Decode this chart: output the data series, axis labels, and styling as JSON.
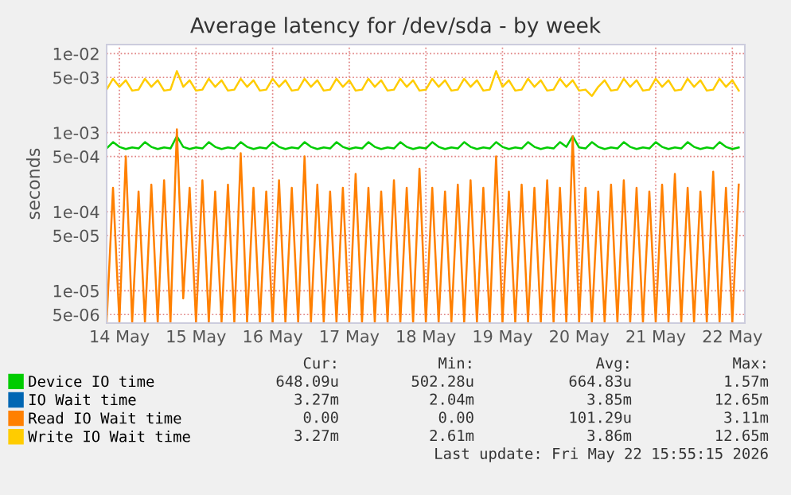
{
  "chart_data": {
    "type": "line",
    "title": "Average latency for /dev/sda - by week",
    "ylabel": "seconds",
    "log": "y",
    "grid": true,
    "legend": "bottom",
    "marker": "none",
    "line_style": "solid",
    "xlim": [
      "2026-05-14T08:00",
      "2026-05-22T15:55"
    ],
    "xticks": [
      {
        "value": "2026-05-14T12:00",
        "label": "14 May"
      },
      {
        "value": "2026-05-15T12:00",
        "label": "15 May"
      },
      {
        "value": "2026-05-16T12:00",
        "label": "16 May"
      },
      {
        "value": "2026-05-17T12:00",
        "label": "17 May"
      },
      {
        "value": "2026-05-18T12:00",
        "label": "18 May"
      },
      {
        "value": "2026-05-19T12:00",
        "label": "19 May"
      },
      {
        "value": "2026-05-20T12:00",
        "label": "20 May"
      },
      {
        "value": "2026-05-21T12:00",
        "label": "21 May"
      },
      {
        "value": "2026-05-22T12:00",
        "label": "22 May"
      }
    ],
    "ylim": [
      3.9e-06,
      0.013
    ],
    "yticks": [
      {
        "value": 0.01,
        "label": "1e-02"
      },
      {
        "value": 0.005,
        "label": "5e-03"
      },
      {
        "value": 0.001,
        "label": "1e-03"
      },
      {
        "value": 0.0005,
        "label": "5e-04"
      },
      {
        "value": 0.0001,
        "label": "1e-04"
      },
      {
        "value": 5e-05,
        "label": "5e-05"
      },
      {
        "value": 1e-05,
        "label": "1e-05"
      },
      {
        "value": 5e-06,
        "label": "5e-06"
      }
    ],
    "x": [
      "2026-05-14T08:00",
      "2026-05-14T10:00",
      "2026-05-14T12:00",
      "2026-05-14T14:00",
      "2026-05-14T16:00",
      "2026-05-14T18:00",
      "2026-05-14T20:00",
      "2026-05-14T22:00",
      "2026-05-15T00:00",
      "2026-05-15T02:00",
      "2026-05-15T04:00",
      "2026-05-15T06:00",
      "2026-05-15T08:00",
      "2026-05-15T10:00",
      "2026-05-15T12:00",
      "2026-05-15T14:00",
      "2026-05-15T16:00",
      "2026-05-15T18:00",
      "2026-05-15T20:00",
      "2026-05-15T22:00",
      "2026-05-16T00:00",
      "2026-05-16T02:00",
      "2026-05-16T04:00",
      "2026-05-16T06:00",
      "2026-05-16T08:00",
      "2026-05-16T10:00",
      "2026-05-16T12:00",
      "2026-05-16T14:00",
      "2026-05-16T16:00",
      "2026-05-16T18:00",
      "2026-05-16T20:00",
      "2026-05-16T22:00",
      "2026-05-17T00:00",
      "2026-05-17T02:00",
      "2026-05-17T04:00",
      "2026-05-17T06:00",
      "2026-05-17T08:00",
      "2026-05-17T10:00",
      "2026-05-17T12:00",
      "2026-05-17T14:00",
      "2026-05-17T16:00",
      "2026-05-17T18:00",
      "2026-05-17T20:00",
      "2026-05-17T22:00",
      "2026-05-18T00:00",
      "2026-05-18T02:00",
      "2026-05-18T04:00",
      "2026-05-18T06:00",
      "2026-05-18T08:00",
      "2026-05-18T10:00",
      "2026-05-18T12:00",
      "2026-05-18T14:00",
      "2026-05-18T16:00",
      "2026-05-18T18:00",
      "2026-05-18T20:00",
      "2026-05-18T22:00",
      "2026-05-19T00:00",
      "2026-05-19T02:00",
      "2026-05-19T04:00",
      "2026-05-19T06:00",
      "2026-05-19T08:00",
      "2026-05-19T10:00",
      "2026-05-19T12:00",
      "2026-05-19T14:00",
      "2026-05-19T16:00",
      "2026-05-19T18:00",
      "2026-05-19T20:00",
      "2026-05-19T22:00",
      "2026-05-20T00:00",
      "2026-05-20T02:00",
      "2026-05-20T04:00",
      "2026-05-20T06:00",
      "2026-05-20T08:00",
      "2026-05-20T10:00",
      "2026-05-20T12:00",
      "2026-05-20T14:00",
      "2026-05-20T16:00",
      "2026-05-20T18:00",
      "2026-05-20T20:00",
      "2026-05-20T22:00",
      "2026-05-21T00:00",
      "2026-05-21T02:00",
      "2026-05-21T04:00",
      "2026-05-21T06:00",
      "2026-05-21T08:00",
      "2026-05-21T10:00",
      "2026-05-21T12:00",
      "2026-05-21T14:00",
      "2026-05-21T16:00",
      "2026-05-21T18:00",
      "2026-05-21T20:00",
      "2026-05-21T22:00",
      "2026-05-22T00:00",
      "2026-05-22T02:00",
      "2026-05-22T04:00",
      "2026-05-22T06:00",
      "2026-05-22T08:00",
      "2026-05-22T10:00",
      "2026-05-22T12:00",
      "2026-05-22T14:00"
    ],
    "series": [
      {
        "name": "Device IO time",
        "color": "#00cc00",
        "values": [
          0.00063,
          0.00076,
          0.00066,
          0.00062,
          0.00065,
          0.00063,
          0.00076,
          0.00066,
          0.00062,
          0.00065,
          0.00063,
          0.0009,
          0.00066,
          0.00062,
          0.00065,
          0.00063,
          0.00076,
          0.00066,
          0.00062,
          0.00065,
          0.00063,
          0.00076,
          0.00066,
          0.00062,
          0.00065,
          0.00063,
          0.00076,
          0.00066,
          0.00062,
          0.00065,
          0.00063,
          0.00076,
          0.00066,
          0.00062,
          0.00065,
          0.00063,
          0.00076,
          0.00066,
          0.00062,
          0.00065,
          0.00063,
          0.00076,
          0.00066,
          0.00062,
          0.00065,
          0.00063,
          0.00076,
          0.00066,
          0.00062,
          0.00065,
          0.00063,
          0.00076,
          0.00066,
          0.00062,
          0.00065,
          0.00063,
          0.00076,
          0.00066,
          0.00062,
          0.00065,
          0.00063,
          0.00076,
          0.00066,
          0.00062,
          0.00065,
          0.00063,
          0.00076,
          0.00066,
          0.00062,
          0.00065,
          0.00063,
          0.00076,
          0.00066,
          0.0009,
          0.00065,
          0.00063,
          0.00076,
          0.00066,
          0.00062,
          0.00065,
          0.00063,
          0.00076,
          0.00066,
          0.00062,
          0.00065,
          0.00063,
          0.00076,
          0.00066,
          0.00062,
          0.00065,
          0.00063,
          0.00076,
          0.00066,
          0.00062,
          0.00065,
          0.00063,
          0.00076,
          0.00066,
          0.00062,
          0.00065
        ]
      },
      {
        "name": "IO Wait time",
        "color": "#0066b3",
        "values": [
          null,
          null,
          null,
          null,
          null,
          null,
          null,
          null,
          null,
          null,
          null,
          null,
          null,
          null,
          null,
          null,
          null,
          null,
          null,
          null,
          null,
          null,
          null,
          null,
          null,
          null,
          null,
          null,
          null,
          null,
          null,
          null,
          null,
          null,
          null,
          null,
          null,
          null,
          null,
          null,
          null,
          null,
          null,
          null,
          null,
          null,
          null,
          null,
          null,
          null,
          null,
          null,
          null,
          null,
          null,
          null,
          null,
          null,
          null,
          null,
          null,
          null,
          null,
          null,
          null,
          null,
          null,
          null,
          null,
          null,
          null,
          null,
          null,
          null,
          null,
          null,
          null,
          null,
          null,
          null,
          null,
          null,
          null,
          null,
          null,
          null,
          null,
          null,
          null,
          null,
          null,
          null,
          null,
          null,
          null,
          null,
          null,
          null,
          null,
          null
        ]
      },
      {
        "name": "Read IO Wait time",
        "color": "#ff8000",
        "values": [
          4e-06,
          0.0002,
          4e-06,
          0.0005,
          4e-06,
          0.00018,
          4e-06,
          0.00022,
          4e-06,
          0.00025,
          4e-06,
          0.0011,
          8e-06,
          0.0002,
          4e-06,
          0.00025,
          4e-06,
          0.00018,
          4e-06,
          0.00022,
          4e-06,
          0.00055,
          4e-06,
          0.0002,
          4e-06,
          0.00018,
          4e-06,
          0.00025,
          4e-06,
          0.0002,
          4e-06,
          0.0005,
          4e-06,
          0.00022,
          4e-06,
          0.00018,
          4e-06,
          0.0002,
          4e-06,
          0.0003,
          4e-06,
          0.0002,
          4e-06,
          0.00018,
          4e-06,
          0.00025,
          4e-06,
          0.0002,
          4e-06,
          0.00035,
          4e-06,
          0.0002,
          4e-06,
          0.00018,
          4e-06,
          0.00022,
          4e-06,
          0.00025,
          4e-06,
          0.0002,
          4e-06,
          0.0005,
          4e-06,
          0.00018,
          4e-06,
          0.00022,
          4e-06,
          0.0002,
          4e-06,
          0.00025,
          4e-06,
          0.0002,
          4e-06,
          0.0009,
          4e-06,
          0.0002,
          4e-06,
          0.00018,
          4e-06,
          0.00022,
          4e-06,
          0.00025,
          4e-06,
          0.0002,
          4e-06,
          0.00018,
          4e-06,
          0.00022,
          4e-06,
          0.0003,
          4e-06,
          0.0002,
          4e-06,
          0.00018,
          4e-06,
          0.00032,
          4e-06,
          0.0002,
          4e-06,
          0.00022
        ]
      },
      {
        "name": "Write IO Wait time",
        "color": "#ffcc00",
        "values": [
          0.0035,
          0.0048,
          0.0038,
          0.0046,
          0.0034,
          0.0035,
          0.0048,
          0.0038,
          0.0046,
          0.0034,
          0.0035,
          0.006,
          0.0038,
          0.0046,
          0.0034,
          0.0035,
          0.0048,
          0.0038,
          0.0046,
          0.0034,
          0.0035,
          0.0048,
          0.0038,
          0.0046,
          0.0034,
          0.0035,
          0.0048,
          0.0038,
          0.0046,
          0.0034,
          0.0035,
          0.0048,
          0.0038,
          0.0046,
          0.0034,
          0.0035,
          0.0048,
          0.0038,
          0.0046,
          0.0034,
          0.0035,
          0.0048,
          0.0038,
          0.0046,
          0.0034,
          0.0035,
          0.0048,
          0.0038,
          0.0046,
          0.0034,
          0.0035,
          0.0048,
          0.0038,
          0.0046,
          0.0034,
          0.0035,
          0.0048,
          0.0038,
          0.0046,
          0.0034,
          0.0035,
          0.006,
          0.0038,
          0.0046,
          0.0034,
          0.0035,
          0.0048,
          0.0038,
          0.0046,
          0.0034,
          0.0035,
          0.0048,
          0.0038,
          0.0046,
          0.0034,
          0.0035,
          0.0029,
          0.0038,
          0.0046,
          0.0034,
          0.0035,
          0.0048,
          0.0038,
          0.0046,
          0.0034,
          0.0035,
          0.0048,
          0.0038,
          0.0046,
          0.0034,
          0.0035,
          0.0048,
          0.0038,
          0.0046,
          0.0034,
          0.0035,
          0.0048,
          0.0038,
          0.0046,
          0.0034
        ]
      }
    ],
    "annotations": [
      "Cur:",
      "Min:",
      "Avg:",
      "Max:",
      "648.09u",
      "502.28u",
      "664.83u",
      "1.57m",
      "3.27m",
      "2.04m",
      "3.85m",
      "12.65m",
      "0.00",
      "0.00",
      "101.29u",
      "3.11m",
      "3.27m",
      "2.61m",
      "3.86m",
      "12.65m",
      "Last update: Fri May 22 15:55:15 2026"
    ]
  }
}
